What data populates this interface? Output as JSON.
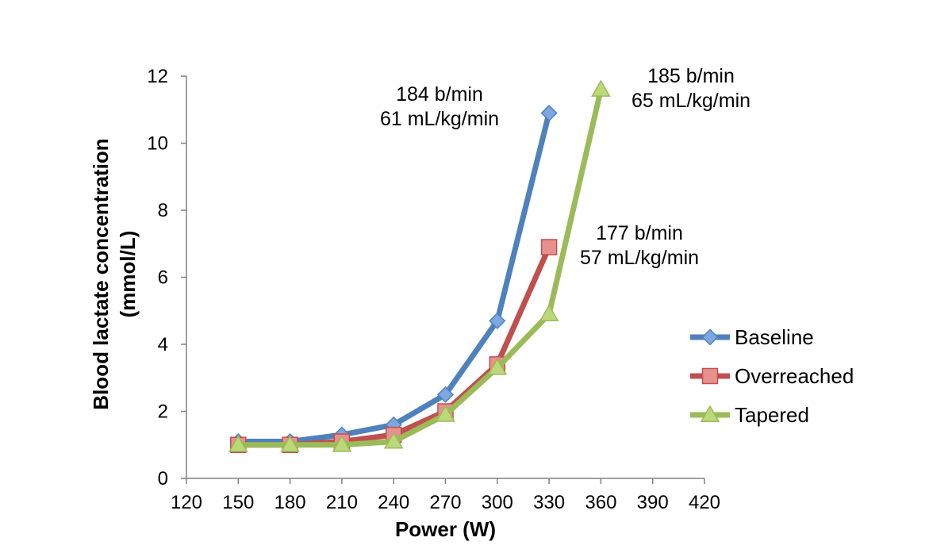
{
  "chart_data": {
    "type": "line",
    "xlabel": "Power (W)",
    "ylabel": [
      "Blood lactate concentration",
      "(mmol/L)"
    ],
    "xlim": [
      120,
      420
    ],
    "ylim": [
      0,
      12
    ],
    "x_ticks": [
      120,
      150,
      180,
      210,
      240,
      270,
      300,
      330,
      360,
      390,
      420
    ],
    "y_ticks": [
      0,
      2,
      4,
      6,
      8,
      10,
      12
    ],
    "grid": false,
    "legend_position": "right",
    "series": [
      {
        "name": "Baseline",
        "color": "#4F81BD",
        "marker": "diamond",
        "marker_fill": "#7DA7E0",
        "x": [
          150,
          180,
          210,
          240,
          270,
          300,
          330
        ],
        "y": [
          1.1,
          1.1,
          1.3,
          1.6,
          2.5,
          4.7,
          10.9
        ]
      },
      {
        "name": "Overreached",
        "color": "#C0504D",
        "marker": "square",
        "marker_fill": "#E8908D",
        "x": [
          150,
          180,
          210,
          240,
          270,
          300,
          330
        ],
        "y": [
          1.0,
          1.0,
          1.1,
          1.3,
          2.0,
          3.4,
          6.9
        ]
      },
      {
        "name": "Tapered",
        "color": "#9BBB59",
        "marker": "triangle",
        "marker_fill": "#BCD97A",
        "x": [
          150,
          180,
          210,
          240,
          270,
          300,
          330,
          360
        ],
        "y": [
          1.0,
          1.0,
          1.0,
          1.1,
          1.9,
          3.3,
          4.9,
          11.6
        ]
      }
    ],
    "annotations": [
      {
        "lines": [
          "184 b/min",
          "61 mL/kg/min"
        ],
        "series": "Baseline"
      },
      {
        "lines": [
          "185 b/min",
          "65 mL/kg/min"
        ],
        "series": "Tapered"
      },
      {
        "lines": [
          "177 b/min",
          "57 mL/kg/min"
        ],
        "series": "Overreached"
      }
    ]
  }
}
